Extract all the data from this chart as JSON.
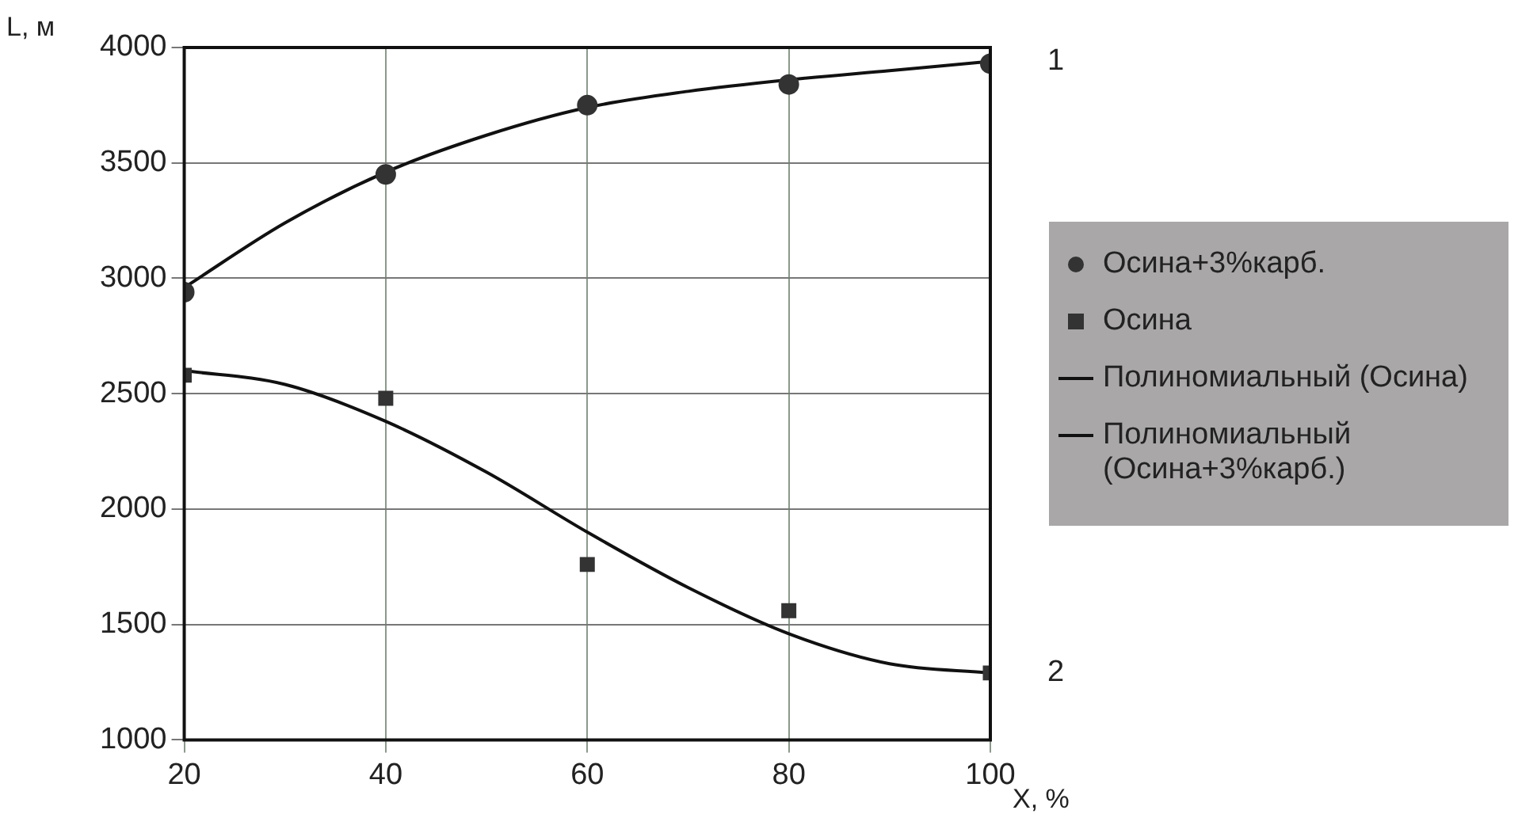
{
  "chart_data": {
    "type": "scatter",
    "xlabel": "X, %",
    "ylabel": "L, м",
    "xlim": [
      20,
      100
    ],
    "xticks": [
      20,
      40,
      60,
      80,
      100
    ],
    "ylim": [
      1000,
      4000
    ],
    "yticks": [
      1000,
      1500,
      2000,
      2500,
      3000,
      3500,
      4000
    ],
    "grid": true,
    "legend": "right",
    "series": [
      {
        "name": "Осина+3%карб.",
        "type": "scatter",
        "marker": "circle",
        "color": "#333333",
        "x": [
          20,
          40,
          60,
          80,
          100
        ],
        "values": [
          2940,
          3450,
          3750,
          3840,
          3930
        ]
      },
      {
        "name": "Осина",
        "type": "scatter",
        "marker": "square",
        "color": "#333333",
        "x": [
          20,
          40,
          60,
          80,
          100
        ],
        "values": [
          2580,
          2480,
          1760,
          1560,
          1290
        ]
      },
      {
        "name": "Полиномиальный (Осина)",
        "type": "line",
        "marker": "none",
        "color": "#111111",
        "x": [
          20,
          30,
          40,
          50,
          60,
          70,
          80,
          90,
          100
        ],
        "values": [
          2600,
          2540,
          2380,
          2160,
          1900,
          1660,
          1460,
          1330,
          1290
        ]
      },
      {
        "name": "Полиномиальный (Осина+3%карб.)",
        "type": "line",
        "marker": "none",
        "color": "#111111",
        "x": [
          20,
          30,
          40,
          50,
          60,
          70,
          80,
          90,
          100
        ],
        "values": [
          2960,
          3240,
          3460,
          3620,
          3740,
          3810,
          3860,
          3900,
          3940
        ]
      }
    ],
    "annotations": [
      {
        "text": "1",
        "x": 100,
        "y": 3940
      },
      {
        "text": "2",
        "x": 100,
        "y": 1290
      }
    ]
  }
}
